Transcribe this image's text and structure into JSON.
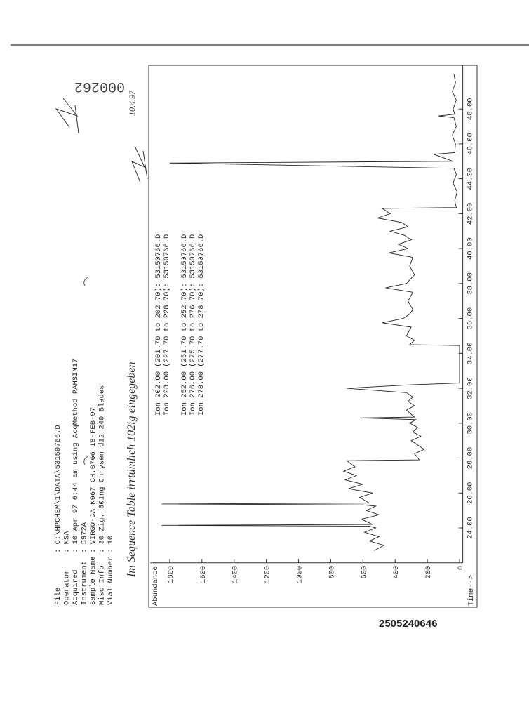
{
  "header": {
    "fields": [
      {
        "label": "File",
        "value": ": C:\\HPCHEM\\1\\DATA\\53150766.D"
      },
      {
        "label": "Operator",
        "value": ": KSA"
      },
      {
        "label": "Acquired",
        "value": ": 10 Apr 97   6:44 am using AcqMethod PAHSIM17"
      },
      {
        "label": "Instrument",
        "value": ":    5972A"
      },
      {
        "label": "Sample Name",
        "value": ": VIRGO-CA K967 CH.0766 18-FEB-97"
      },
      {
        "label": "Misc Info",
        "value": ": 30 Zig. 801ng Chrysen d12   240 Blades"
      },
      {
        "label": "Vial Number",
        "value": ": 10"
      }
    ]
  },
  "ions": [
    "Ion 202.00 (201.70 to 202.70): 53150766.D",
    "Ion 228.00 (227.70 to 228.70): 53150766.D",
    "Ion 252.00 (251.70 to 252.70): 53150766.D",
    "Ion 276.00 (275.70 to 276.70): 53150766.D",
    "Ion 278.00 (277.70 to 278.70): 53150766.D"
  ],
  "handwriting": {
    "note": "Im Sequence Table irrtümlich 102ig eingegeben",
    "date": "10.4.97"
  },
  "stamp": "000262",
  "barcode_number": "2505240646",
  "chart": {
    "type": "line",
    "ylabel": "Abundance",
    "xlabel": "Time-->",
    "color": "#222222",
    "xlim": [
      22.0,
      50.5
    ],
    "ylim": [
      -20,
      1920
    ],
    "xticks": [
      {
        "value": 24,
        "label": "24.00"
      },
      {
        "value": 26,
        "label": "26.00"
      },
      {
        "value": 28,
        "label": "28.00"
      },
      {
        "value": 30,
        "label": "30.00"
      },
      {
        "value": 32,
        "label": "32.00"
      },
      {
        "value": 34,
        "label": "34.00"
      },
      {
        "value": 36,
        "label": "36.00"
      },
      {
        "value": 38,
        "label": "38.00"
      },
      {
        "value": 40,
        "label": "40.00"
      },
      {
        "value": 42,
        "label": "42.00"
      },
      {
        "value": 44,
        "label": "44.00"
      },
      {
        "value": 46,
        "label": "46.00"
      },
      {
        "value": 48,
        "label": "48.00"
      }
    ],
    "yticks": [
      0,
      200,
      400,
      600,
      800,
      1000,
      1200,
      1400,
      1600,
      1800
    ],
    "x": [
      22.7,
      23.0,
      23.25,
      23.5,
      23.75,
      24.0,
      24.1,
      24.15,
      24.2,
      24.5,
      24.75,
      25.0,
      25.25,
      25.32,
      25.37,
      25.42,
      25.75,
      26.0,
      26.25,
      26.5,
      26.75,
      27.0,
      27.25,
      27.5,
      27.85,
      27.9,
      28.25,
      28.5,
      28.75,
      29.0,
      29.25,
      29.5,
      29.75,
      30.0,
      30.2,
      30.3,
      30.35,
      30.75,
      31.0,
      31.25,
      31.5,
      31.75,
      32.0,
      32.2,
      32.3,
      34.45,
      34.5,
      34.75,
      35.0,
      35.5,
      35.75,
      36.0,
      36.25,
      36.5,
      37.0,
      37.5,
      37.75,
      38.0,
      38.5,
      39.0,
      39.5,
      39.75,
      40.0,
      40.25,
      40.5,
      40.75,
      41.0,
      41.25,
      41.5,
      41.75,
      42.0,
      42.3,
      42.35,
      42.75,
      43.25,
      43.75,
      44.25,
      44.6,
      44.9,
      45.0,
      45.4,
      45.5,
      46.0,
      46.5,
      47.0,
      47.5,
      47.6,
      47.7,
      48.0,
      48.5,
      49.0,
      49.5,
      50.0
    ],
    "values": [
      530,
      470,
      560,
      500,
      590,
      520,
      560,
      1850,
      540,
      610,
      500,
      580,
      520,
      600,
      1850,
      560,
      620,
      540,
      690,
      600,
      710,
      640,
      720,
      650,
      700,
      250,
      280,
      220,
      260,
      300,
      240,
      290,
      260,
      310,
      270,
      620,
      280,
      330,
      280,
      320,
      290,
      330,
      700,
      300,
      0,
      0,
      310,
      280,
      330,
      300,
      480,
      350,
      310,
      290,
      320,
      290,
      460,
      330,
      280,
      310,
      290,
      440,
      320,
      380,
      300,
      340,
      430,
      320,
      360,
      510,
      430,
      480,
      20,
      30,
      15,
      40,
      20,
      35,
      1800,
      40,
      160,
      30,
      25,
      45,
      20,
      35,
      130,
      30,
      40,
      20,
      45,
      25,
      35
    ]
  }
}
